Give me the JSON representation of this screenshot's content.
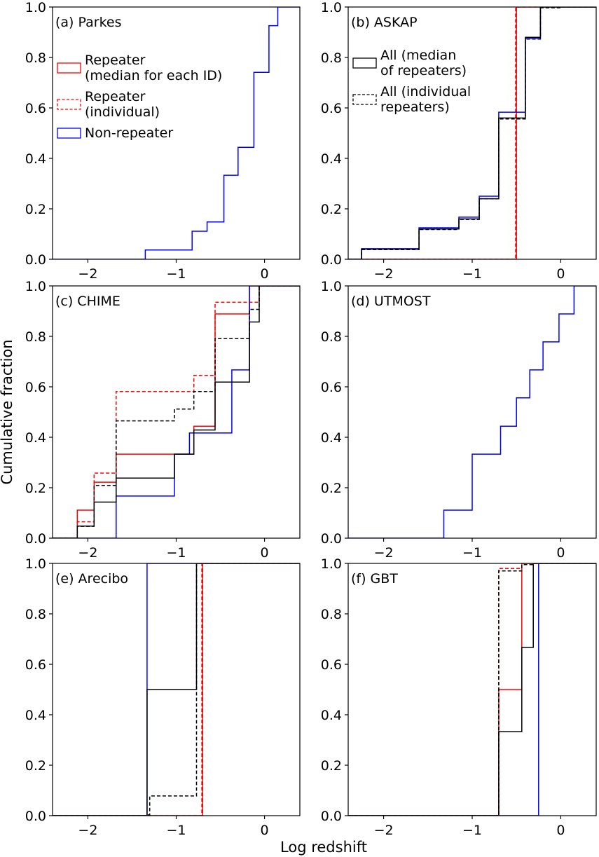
{
  "xlabel": "Log redshift",
  "ylabel": "Cumulative fraction",
  "colors": {
    "repeater": "#ff0000",
    "nonrepeater": "#0000ff",
    "all": "#000000"
  },
  "legend_left": [
    {
      "label_lines": [
        "Repeater",
        "(median for each ID)"
      ],
      "style": "solid",
      "color": "#ff0000"
    },
    {
      "label_lines": [
        "Repeater",
        "(individual)"
      ],
      "style": "dashed",
      "color": "#ff0000"
    },
    {
      "label_lines": [
        "Non-repeater"
      ],
      "style": "solid",
      "color": "#0000ff"
    }
  ],
  "legend_right": [
    {
      "label_lines": [
        "All (median",
        "of repeaters)"
      ],
      "style": "solid",
      "color": "#000000"
    },
    {
      "label_lines": [
        "All (individual",
        "repeaters)"
      ],
      "style": "dashed",
      "color": "#000000"
    }
  ],
  "chart_data": [
    {
      "type": "line",
      "step": true,
      "title": "(a) Parkes",
      "xlim": [
        -2.4,
        0.4
      ],
      "ylim": [
        0.0,
        1.0
      ],
      "xticks": [
        -2,
        -1,
        0
      ],
      "yticks": [
        0.0,
        0.2,
        0.4,
        0.6,
        0.8,
        1.0
      ],
      "series": [
        {
          "name": "Non-repeater",
          "color": "#0000ff",
          "dash": false,
          "x": [
            -1.35,
            -0.82,
            -0.65,
            -0.46,
            -0.3,
            -0.12,
            0.05,
            0.15,
            0.25
          ],
          "y": [
            0.037,
            0.111,
            0.148,
            0.333,
            0.444,
            0.741,
            0.926,
            1.0,
            1.0
          ]
        }
      ]
    },
    {
      "type": "line",
      "step": true,
      "title": "(b) ASKAP",
      "xlim": [
        -2.4,
        0.4
      ],
      "ylim": [
        0.0,
        1.0
      ],
      "xticks": [
        -2,
        -1,
        0
      ],
      "yticks": [
        0.0,
        0.2,
        0.4,
        0.6,
        0.8,
        1.0
      ],
      "series": [
        {
          "name": "Repeater (median for each ID)",
          "color": "#ff0000",
          "dash": false,
          "x": [
            -0.5
          ],
          "y": [
            1.0
          ]
        },
        {
          "name": "Repeater (individual)",
          "color": "#ff0000",
          "dash": true,
          "x": [
            -0.51
          ],
          "y": [
            1.0
          ]
        },
        {
          "name": "Non-repeater",
          "color": "#0000ff",
          "dash": false,
          "x": [
            -2.25,
            -1.6,
            -1.15,
            -0.92,
            -0.7,
            -0.5,
            -0.4,
            -0.23,
            0.0
          ],
          "y": [
            0.042,
            0.125,
            0.167,
            0.25,
            0.583,
            0.583,
            0.875,
            1.0,
            1.0
          ]
        },
        {
          "name": "All (median of repeaters)",
          "color": "#000000",
          "dash": false,
          "x": [
            -2.25,
            -1.6,
            -1.15,
            -0.92,
            -0.7,
            -0.5,
            -0.4,
            -0.23,
            0.0
          ],
          "y": [
            0.04,
            0.12,
            0.16,
            0.24,
            0.56,
            0.56,
            0.88,
            1.0,
            1.0
          ]
        },
        {
          "name": "All (individual repeaters)",
          "color": "#000000",
          "dash": true,
          "x": [
            -2.25,
            -1.6,
            -1.15,
            -0.92,
            -0.7,
            -0.5,
            -0.4,
            -0.23,
            0.0
          ],
          "y": [
            0.038,
            0.118,
            0.158,
            0.24,
            0.556,
            0.556,
            0.873,
            0.997,
            1.0
          ]
        }
      ]
    },
    {
      "type": "line",
      "step": true,
      "title": "(c) CHIME",
      "xlim": [
        -2.4,
        0.4
      ],
      "ylim": [
        0.0,
        1.0
      ],
      "xticks": [
        -2,
        -1,
        0
      ],
      "yticks": [
        0.0,
        0.2,
        0.4,
        0.6,
        0.8,
        1.0
      ],
      "series": [
        {
          "name": "Repeater (median for each ID)",
          "color": "#ff0000",
          "dash": false,
          "x": [
            -2.12,
            -1.93,
            -1.68,
            -1.03,
            -0.8,
            -0.56,
            -0.17,
            -0.06,
            0.05
          ],
          "y": [
            0.111,
            0.222,
            0.333,
            0.333,
            0.444,
            0.889,
            1.0,
            1.0,
            1.0
          ]
        },
        {
          "name": "Repeater (individual)",
          "color": "#ff0000",
          "dash": true,
          "x": [
            -2.12,
            -1.93,
            -1.68,
            -0.8,
            -0.56,
            -0.17,
            -0.06,
            0.05
          ],
          "y": [
            0.065,
            0.258,
            0.581,
            0.645,
            0.935,
            0.935,
            1.0,
            1.0
          ]
        },
        {
          "name": "Non-repeater",
          "color": "#0000ff",
          "dash": false,
          "x": [
            -1.68,
            -1.02,
            -0.85,
            -0.37,
            -0.17,
            0.05
          ],
          "y": [
            0.167,
            0.333,
            0.417,
            0.667,
            1.0,
            1.0
          ]
        },
        {
          "name": "All (median of repeaters)",
          "color": "#000000",
          "dash": false,
          "x": [
            -2.12,
            -1.93,
            -1.68,
            -1.02,
            -0.8,
            -0.56,
            -0.17,
            -0.06,
            0.05
          ],
          "y": [
            0.048,
            0.143,
            0.238,
            0.333,
            0.429,
            0.619,
            0.857,
            1.0,
            1.0
          ]
        },
        {
          "name": "All (individual repeaters)",
          "color": "#000000",
          "dash": true,
          "x": [
            -2.12,
            -1.93,
            -1.68,
            -1.02,
            -0.8,
            -0.56,
            -0.17,
            -0.06,
            0.05
          ],
          "y": [
            0.047,
            0.209,
            0.465,
            0.512,
            0.581,
            0.791,
            0.907,
            1.0,
            1.0
          ]
        }
      ]
    },
    {
      "type": "line",
      "step": true,
      "title": "(d) UTMOST",
      "xlim": [
        -2.4,
        0.4
      ],
      "ylim": [
        0.0,
        1.0
      ],
      "xticks": [
        -2,
        -1,
        0
      ],
      "yticks": [
        0.0,
        0.2,
        0.4,
        0.6,
        0.8,
        1.0
      ],
      "series": [
        {
          "name": "Non-repeater",
          "color": "#0000ff",
          "dash": false,
          "x": [
            -1.32,
            -1.0,
            -0.68,
            -0.5,
            -0.35,
            -0.2,
            -0.02,
            0.15,
            0.3
          ],
          "y": [
            0.111,
            0.333,
            0.444,
            0.556,
            0.667,
            0.778,
            0.889,
            1.0,
            1.0
          ]
        }
      ]
    },
    {
      "type": "line",
      "step": true,
      "title": "(e) Arecibo",
      "xlim": [
        -2.4,
        0.4
      ],
      "ylim": [
        0.0,
        1.0
      ],
      "xticks": [
        -2,
        -1,
        0
      ],
      "yticks": [
        0.0,
        0.2,
        0.4,
        0.6,
        0.8,
        1.0
      ],
      "series": [
        {
          "name": "Repeater (median for each ID)",
          "color": "#ff0000",
          "dash": false,
          "x": [
            -1.3,
            -0.7,
            -0.1
          ],
          "y": [
            0.0,
            1.0,
            1.0
          ]
        },
        {
          "name": "Repeater (individual)",
          "color": "#ff0000",
          "dash": true,
          "x": [
            -1.3,
            -0.71,
            -0.1
          ],
          "y": [
            0.0,
            1.0,
            1.0
          ]
        },
        {
          "name": "Non-repeater",
          "color": "#0000ff",
          "dash": false,
          "x": [
            -1.8,
            -1.33,
            -0.1
          ],
          "y": [
            0.0,
            1.0,
            1.0
          ]
        },
        {
          "name": "All (median of repeaters)",
          "color": "#000000",
          "dash": false,
          "x": [
            -1.8,
            -1.33,
            -0.77,
            -0.1
          ],
          "y": [
            0.0,
            0.5,
            1.0,
            1.0
          ]
        },
        {
          "name": "All (individual repeaters)",
          "color": "#000000",
          "dash": true,
          "x": [
            -1.8,
            -1.33,
            -1.3,
            -0.77,
            -0.1
          ],
          "y": [
            0.0,
            0.003,
            0.078,
            1.0,
            1.0
          ]
        }
      ]
    },
    {
      "type": "line",
      "step": true,
      "title": "(f) GBT",
      "xlim": [
        -2.4,
        0.4
      ],
      "ylim": [
        0.0,
        1.0
      ],
      "xticks": [
        -2,
        -1,
        0
      ],
      "yticks": [
        0.0,
        0.2,
        0.4,
        0.6,
        0.8,
        1.0
      ],
      "series": [
        {
          "name": "Repeater (median for each ID)",
          "color": "#ff0000",
          "dash": false,
          "x": [
            -0.7,
            -0.44,
            0.0
          ],
          "y": [
            0.5,
            1.0,
            1.0
          ]
        },
        {
          "name": "Repeater (individual)",
          "color": "#ff0000",
          "dash": true,
          "x": [
            -0.7,
            -0.44,
            0.0
          ],
          "y": [
            0.98,
            1.0,
            1.0
          ]
        },
        {
          "name": "Non-repeater",
          "color": "#0000ff",
          "dash": false,
          "x": [
            -0.25,
            0.1
          ],
          "y": [
            1.0,
            1.0
          ]
        },
        {
          "name": "All (median of repeaters)",
          "color": "#000000",
          "dash": false,
          "x": [
            -0.7,
            -0.44,
            -0.31,
            0.0
          ],
          "y": [
            0.333,
            0.667,
            1.0,
            1.0
          ]
        },
        {
          "name": "All (individual repeaters)",
          "color": "#000000",
          "dash": true,
          "x": [
            -0.7,
            -0.44,
            -0.31,
            0.0
          ],
          "y": [
            0.97,
            0.995,
            1.0,
            1.0
          ]
        }
      ]
    }
  ]
}
